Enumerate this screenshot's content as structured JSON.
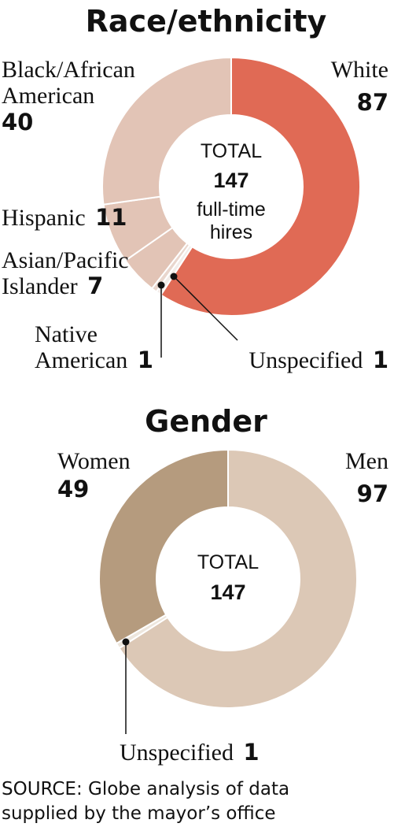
{
  "chart_data": [
    {
      "type": "pie",
      "title": "Race/ethnicity",
      "center": {
        "label": "TOTAL",
        "value": "147",
        "note_lines": [
          "full-time",
          "hires"
        ]
      },
      "slices": [
        {
          "name": "White",
          "value": 87,
          "color": "#e06a55"
        },
        {
          "name": "Unspecified",
          "value": 1,
          "color": "#f2ece9"
        },
        {
          "name": "Native American",
          "value": 1,
          "color": "#e9d6cd"
        },
        {
          "name": "Asian/Pacific Islander",
          "value": 7,
          "color": "#e2c4b6"
        },
        {
          "name": "Hispanic",
          "value": 11,
          "color": "#e2c4b6"
        },
        {
          "name": "Black/African American",
          "value": 40,
          "color": "#e2c4b6"
        }
      ],
      "labels": {
        "white": {
          "lines": [
            "White"
          ],
          "value": "87"
        },
        "black": {
          "lines": [
            "Black/African",
            "American"
          ],
          "value": "40"
        },
        "hispanic": {
          "lines": [
            "Hispanic"
          ],
          "value": "11"
        },
        "asian": {
          "lines": [
            "Asian/Pacific",
            "Islander"
          ],
          "value": "7"
        },
        "native": {
          "lines": [
            "Native",
            "American"
          ],
          "value": "1"
        },
        "unspecified": {
          "lines": [
            "Unspecified"
          ],
          "value": "1"
        }
      }
    },
    {
      "type": "pie",
      "title": "Gender",
      "center": {
        "label": "TOTAL",
        "value": "147"
      },
      "slices": [
        {
          "name": "Men",
          "value": 97,
          "color": "#dcc8b6"
        },
        {
          "name": "Unspecified",
          "value": 1,
          "color": "#ede6dd"
        },
        {
          "name": "Women",
          "value": 49,
          "color": "#b59b7e"
        }
      ],
      "labels": {
        "men": {
          "lines": [
            "Men"
          ],
          "value": "97"
        },
        "women": {
          "lines": [
            "Women"
          ],
          "value": "49"
        },
        "unspecified": {
          "lines": [
            "Unspecified"
          ],
          "value": "1"
        }
      }
    }
  ],
  "source": [
    "SOURCE: Globe analysis of data",
    "supplied by the mayor’s office"
  ]
}
